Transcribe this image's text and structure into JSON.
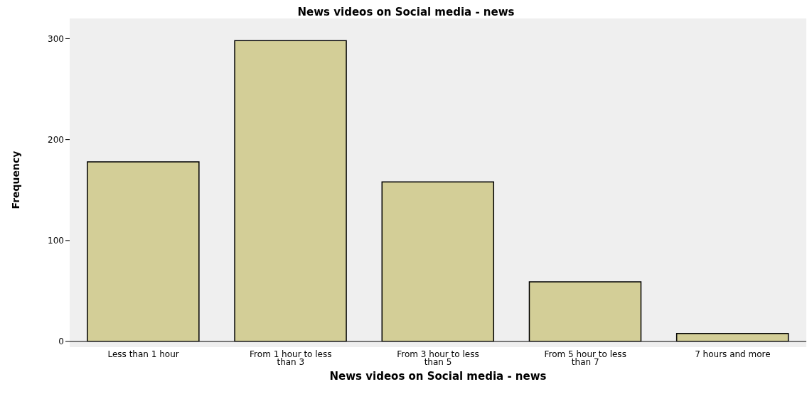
{
  "chart_data": {
    "type": "bar",
    "title": "News videos on Social media - news",
    "xlabel": "News videos on Social media - news",
    "ylabel": "Frequency",
    "categories": [
      "Less than 1 hour",
      "From 1 hour to less than 3",
      "From 3 hour to less than 5",
      "From 5 hour to less than 7",
      "7 hours and more"
    ],
    "values": [
      178,
      298,
      158,
      59,
      8
    ],
    "color": "#d3ce97",
    "ylim": [
      0,
      320
    ],
    "yticks": [
      0,
      100,
      200,
      300
    ],
    "grid": false
  }
}
